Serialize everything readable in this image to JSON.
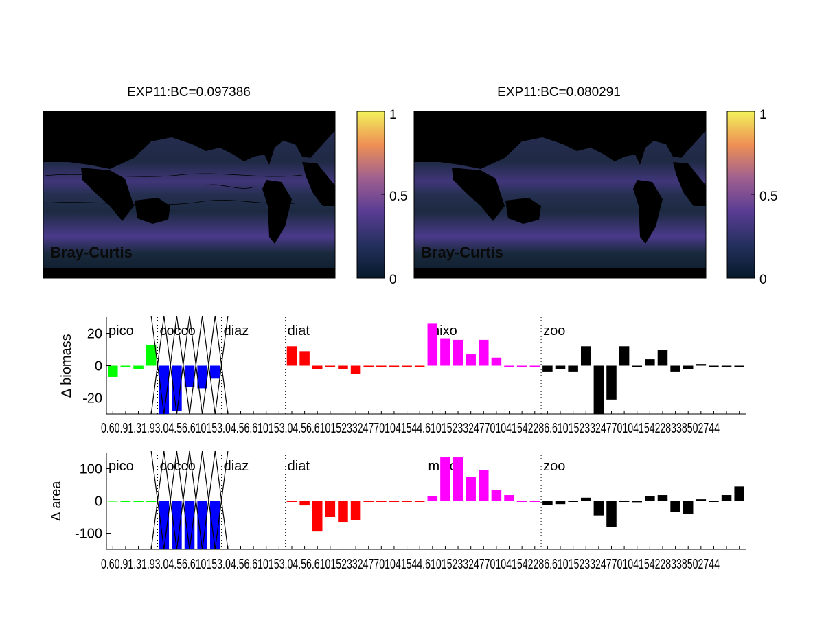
{
  "figure": {
    "maps": [
      {
        "title": "EXP11:BC=0.097386",
        "panel_label": "Bray-Curtis",
        "has_contours": true
      },
      {
        "title": "EXP11:BC=0.080291",
        "panel_label": "Bray-Curtis",
        "has_contours": false
      }
    ],
    "colorbar": {
      "min": 0,
      "max": 1,
      "ticks": [
        "0",
        "0.5",
        "1"
      ],
      "colors": [
        "#061a2a",
        "#2b2f66",
        "#6a3d9a",
        "#b46a8f",
        "#f0a24a",
        "#f2f25a"
      ]
    }
  },
  "chart_data": [
    {
      "type": "bar",
      "ylabel": "∆ biomass",
      "ylim": [
        -30,
        30
      ],
      "yticks": [
        "20",
        "0",
        "-20"
      ],
      "groups": [
        {
          "name": "pico",
          "color": "#00ff00",
          "range": [
            1,
            4
          ]
        },
        {
          "name": "cocco",
          "color": "#0000ff",
          "range": [
            5,
            9
          ],
          "crossed": true
        },
        {
          "name": "diaz",
          "color": "#ffffff",
          "range": [
            10,
            14
          ]
        },
        {
          "name": "diat",
          "color": "#ff0000",
          "range": [
            15,
            25
          ]
        },
        {
          "name": "mixo",
          "color": "#ff00ff",
          "range": [
            26,
            34
          ]
        },
        {
          "name": "zoo",
          "color": "#000000",
          "range": [
            35,
            50
          ]
        }
      ],
      "values": [
        -7,
        -1,
        -2,
        13,
        -30,
        -28,
        -13,
        -14,
        -8,
        0,
        0,
        0,
        0,
        0,
        12,
        9,
        -2,
        -1,
        -2,
        -5,
        0,
        0,
        0,
        0,
        0,
        26,
        17,
        16,
        7,
        16,
        5,
        0,
        0,
        0,
        -4,
        -2,
        -4,
        12,
        -30,
        -21,
        12,
        -1,
        4,
        10,
        -4,
        -2,
        1,
        0,
        0,
        0
      ],
      "xtick_labels": "0.6 0.9 1.3 1.9 3.0 4.5 6.6 10 15 3.0 4.5 6.6 10 15 3.0 4.5 6.6 10 15 23 32 47 70 104 154 4.6 10 15 23 32 47 70 104 154 228 6.6 10 15 23 32 47 70 104 154 228 338 502 744"
    },
    {
      "type": "bar",
      "ylabel": "∆ area",
      "ylim": [
        -150,
        150
      ],
      "yticks": [
        "100",
        "0",
        "-100"
      ],
      "groups": [
        {
          "name": "pico",
          "color": "#00ff00",
          "range": [
            1,
            4
          ]
        },
        {
          "name": "cocco",
          "color": "#0000ff",
          "range": [
            5,
            9
          ],
          "crossed": true
        },
        {
          "name": "diaz",
          "color": "#ffffff",
          "range": [
            10,
            14
          ]
        },
        {
          "name": "diat",
          "color": "#ff0000",
          "range": [
            15,
            25
          ]
        },
        {
          "name": "mixo",
          "color": "#ff00ff",
          "range": [
            26,
            34
          ]
        },
        {
          "name": "zoo",
          "color": "#000000",
          "range": [
            35,
            50
          ]
        }
      ],
      "values": [
        1,
        0,
        0,
        0,
        -150,
        -150,
        -150,
        -150,
        -150,
        0,
        0,
        0,
        0,
        0,
        -2,
        -14,
        -95,
        -50,
        -65,
        -60,
        -3,
        -3,
        0,
        0,
        0,
        15,
        135,
        135,
        75,
        95,
        35,
        18,
        0,
        0,
        -12,
        -10,
        0,
        10,
        -45,
        -80,
        0,
        -4,
        15,
        18,
        -35,
        -40,
        5,
        -2,
        18,
        45
      ],
      "xtick_labels": "0.6 0.9 1.3 1.9 3.0 4.5 6.6 10 15 3.0 4.5 6.6 10 15 3.0 4.5 6.6 10 15 23 32 47 70 104 154 4.6 10 15 23 32 47 70 104 154 228 6.6 10 15 23 32 47 70 104 154 228 338 502 744"
    }
  ]
}
